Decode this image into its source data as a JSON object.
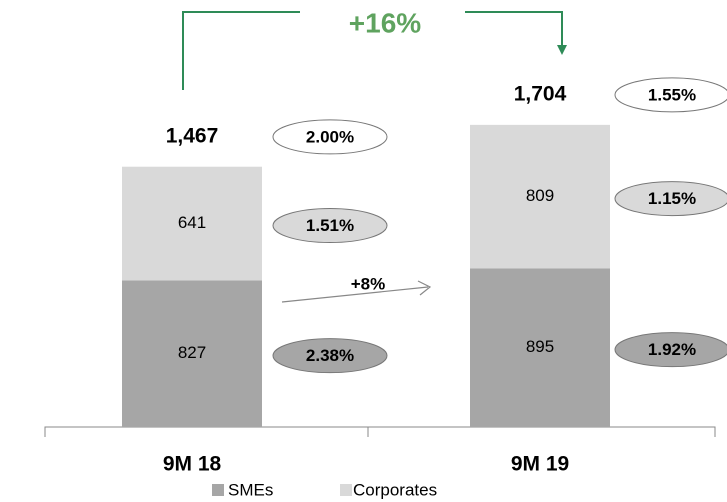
{
  "chart_data": {
    "type": "stacked-bar",
    "categories": [
      "9M 18",
      "9M 19"
    ],
    "series": [
      {
        "name": "SMEs",
        "color": "#a6a6a6",
        "values": [
          827,
          895
        ],
        "rate_labels": [
          "2.38%",
          "1.92%"
        ]
      },
      {
        "name": "Corporates",
        "color": "#d9d9d9",
        "values": [
          641,
          809
        ],
        "rate_labels": [
          "1.51%",
          "1.15%"
        ]
      }
    ],
    "totals": {
      "values": [
        1467,
        1704
      ],
      "value_labels": [
        "1,467",
        "1,704"
      ],
      "rate_labels": [
        "2.00%",
        "1.55%"
      ]
    },
    "annotations": {
      "total_growth": "+16%",
      "sme_growth": "+8%"
    },
    "legend": "bottom"
  }
}
